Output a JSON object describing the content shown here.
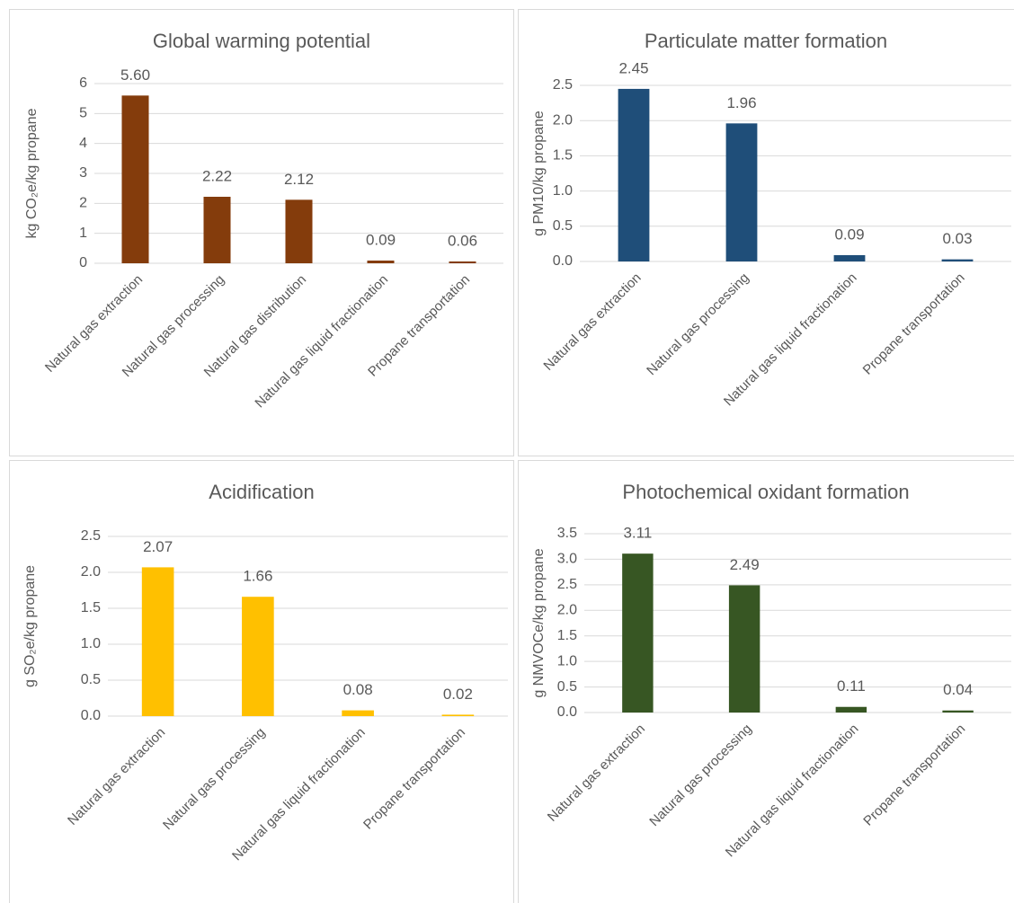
{
  "chart_data": [
    {
      "type": "bar",
      "title": "Global warming potential",
      "y_label": "kg CO₂e/kg propane",
      "categories": [
        "Natural gas extraction",
        "Natural gas processing",
        "Natural gas distribution",
        "Natural gas liquid fractionation",
        "Propane transportation"
      ],
      "values": [
        5.6,
        2.22,
        2.12,
        0.09,
        0.06
      ],
      "value_labels": [
        "5.60",
        "2.22",
        "2.12",
        "0.09",
        "0.06"
      ],
      "color": "#843c0c",
      "ylim": [
        0,
        6
      ],
      "yticks": [
        0,
        1,
        2,
        3,
        4,
        5,
        6
      ],
      "grid": true
    },
    {
      "type": "bar",
      "title": "Particulate matter formation",
      "y_label": "g PM10/kg propane",
      "categories": [
        "Natural gas extraction",
        "Natural gas processing",
        "Natural gas liquid fractionation",
        "Propane transportation"
      ],
      "values": [
        2.45,
        1.96,
        0.09,
        0.03
      ],
      "value_labels": [
        "2.45",
        "1.96",
        "0.09",
        "0.03"
      ],
      "color": "#1f4e79",
      "ylim": [
        0,
        2.5
      ],
      "yticks": [
        {
          "value": 0,
          "label": "0.0"
        },
        0.5,
        {
          "value": 1,
          "label": "1.0"
        },
        1.5,
        {
          "value": 2,
          "label": "2.0"
        },
        2.5
      ],
      "grid": true
    },
    {
      "type": "bar",
      "title": "Acidification",
      "y_label": "g SO₂e/kg propane",
      "categories": [
        "Natural gas extraction",
        "Natural gas processing",
        "Natural gas liquid fractionation",
        "Propane transportation"
      ],
      "values": [
        2.07,
        1.66,
        0.08,
        0.02
      ],
      "value_labels": [
        "2.07",
        "1.66",
        "0.08",
        "0.02"
      ],
      "color": "#ffc000",
      "ylim": [
        0,
        2.5
      ],
      "yticks": [
        {
          "value": 0,
          "label": "0.0"
        },
        0.5,
        {
          "value": 1,
          "label": "1.0"
        },
        1.5,
        {
          "value": 2,
          "label": "2.0"
        },
        2.5
      ],
      "grid": true
    },
    {
      "type": "bar",
      "title": "Photochemical oxidant formation",
      "y_label": "g NMVOCe/kg propane",
      "categories": [
        "Natural gas extraction",
        "Natural gas processing",
        "Natural gas liquid fractionation",
        "Propane transportation"
      ],
      "values": [
        3.11,
        2.49,
        0.11,
        0.04
      ],
      "value_labels": [
        "3.11",
        "2.49",
        "0.11",
        "0.04"
      ],
      "color": "#375623",
      "ylim": [
        0,
        3.5
      ],
      "yticks": [
        {
          "value": 0,
          "label": "0.0"
        },
        0.5,
        {
          "value": 1,
          "label": "1.0"
        },
        1.5,
        {
          "value": 2,
          "label": "2.0"
        },
        2.5,
        {
          "value": 3,
          "label": "3.0"
        },
        3.5
      ],
      "grid": true
    }
  ]
}
